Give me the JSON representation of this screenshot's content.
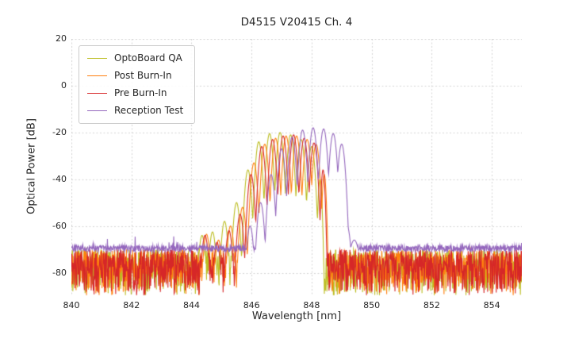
{
  "chart_data": {
    "type": "line",
    "title": "D4515 V20415 Ch. 4",
    "xlabel": "Wavelength [nm]",
    "ylabel": "Optical Power [dB]",
    "xlim": [
      840,
      855
    ],
    "ylim": [
      -90,
      20
    ],
    "xticks": [
      840,
      842,
      844,
      846,
      848,
      850,
      852,
      854
    ],
    "yticks": [
      20,
      0,
      -20,
      -40,
      -60,
      -80
    ],
    "grid": true,
    "legend_position": "upper left",
    "series": [
      {
        "name": "OptoBoard QA",
        "color": "#bcbd22",
        "valley_drop": 34,
        "noise": {
          "type": "spiky",
          "hi": -70,
          "lo": -90
        },
        "modes": [
          {
            "wl": 844.35,
            "db": -64
          },
          {
            "wl": 844.7,
            "db": -62.5
          },
          {
            "wl": 845.1,
            "db": -58
          },
          {
            "wl": 845.5,
            "db": -50
          },
          {
            "wl": 845.88,
            "db": -36
          },
          {
            "wl": 846.24,
            "db": -24
          },
          {
            "wl": 846.6,
            "db": -20.5
          },
          {
            "wl": 846.95,
            "db": -20
          },
          {
            "wl": 847.3,
            "db": -21
          },
          {
            "wl": 847.65,
            "db": -23
          },
          {
            "wl": 848.0,
            "db": -26
          },
          {
            "wl": 848.28,
            "db": -40,
            "w": 0.12
          }
        ]
      },
      {
        "name": "Post Burn-In",
        "color": "#ff7f0e",
        "valley_drop": 33,
        "noise": {
          "type": "spiky",
          "hi": -70,
          "lo": -90
        },
        "modes": [
          {
            "wl": 844.5,
            "db": -63.5
          },
          {
            "wl": 844.9,
            "db": -66
          },
          {
            "wl": 845.3,
            "db": -60
          },
          {
            "wl": 845.7,
            "db": -52
          },
          {
            "wl": 846.08,
            "db": -33
          },
          {
            "wl": 846.44,
            "db": -25
          },
          {
            "wl": 846.8,
            "db": -22.5
          },
          {
            "wl": 847.15,
            "db": -21.5
          },
          {
            "wl": 847.5,
            "db": -21.5
          },
          {
            "wl": 847.85,
            "db": -23
          },
          {
            "wl": 848.15,
            "db": -25
          },
          {
            "wl": 848.42,
            "db": -38,
            "w": 0.12
          }
        ]
      },
      {
        "name": "Pre Burn-In",
        "color": "#d62728",
        "valley_drop": 33,
        "noise": {
          "type": "spiky",
          "hi": -70,
          "lo": -90
        },
        "modes": [
          {
            "wl": 844.45,
            "db": -64
          },
          {
            "wl": 844.85,
            "db": -67
          },
          {
            "wl": 845.25,
            "db": -62
          },
          {
            "wl": 845.62,
            "db": -55
          },
          {
            "wl": 845.98,
            "db": -38
          },
          {
            "wl": 846.34,
            "db": -26
          },
          {
            "wl": 846.7,
            "db": -23
          },
          {
            "wl": 847.05,
            "db": -21.5
          },
          {
            "wl": 847.4,
            "db": -21
          },
          {
            "wl": 847.75,
            "db": -22.5
          },
          {
            "wl": 848.08,
            "db": -24.5
          },
          {
            "wl": 848.38,
            "db": -36,
            "w": 0.12
          }
        ]
      },
      {
        "name": "Reception Test",
        "color": "#9467bd",
        "valley_drop": 30,
        "noise": {
          "type": "flat",
          "base": -69.5,
          "spread": 2.6
        },
        "modes": [
          {
            "wl": 845.95,
            "db": -60
          },
          {
            "wl": 846.3,
            "db": -50
          },
          {
            "wl": 846.65,
            "db": -38
          },
          {
            "wl": 847.0,
            "db": -27
          },
          {
            "wl": 847.35,
            "db": -22
          },
          {
            "wl": 847.7,
            "db": -19
          },
          {
            "wl": 848.05,
            "db": -18
          },
          {
            "wl": 848.4,
            "db": -18.5
          },
          {
            "wl": 848.72,
            "db": -20.5
          },
          {
            "wl": 849.0,
            "db": -25
          },
          {
            "wl": 849.18,
            "db": -60,
            "w": 0.22
          },
          {
            "wl": 849.42,
            "db": -66,
            "w": 0.35
          }
        ]
      }
    ]
  }
}
